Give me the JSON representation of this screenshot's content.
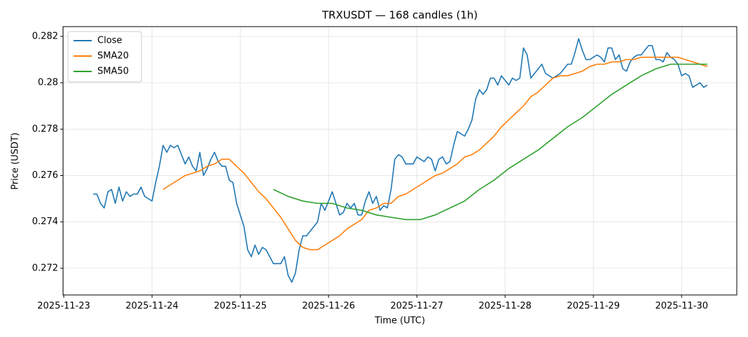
{
  "chart_data": {
    "type": "line",
    "title": "TRXUSDT — 168 candles (1h)",
    "xlabel": "Time (UTC)",
    "ylabel": "Price (USDT)",
    "xlim": [
      -8.2,
      175
    ],
    "ylim": [
      0.27085,
      0.28242
    ],
    "xticks": [
      {
        "value": -8,
        "label": "2025-11-23"
      },
      {
        "value": 16,
        "label": "2025-11-24"
      },
      {
        "value": 40,
        "label": "2025-11-25"
      },
      {
        "value": 64,
        "label": "2025-11-26"
      },
      {
        "value": 88,
        "label": "2025-11-27"
      },
      {
        "value": 112,
        "label": "2025-11-28"
      },
      {
        "value": 136,
        "label": "2025-11-29"
      },
      {
        "value": 160,
        "label": "2025-11-30"
      }
    ],
    "yticks": [
      0.272,
      0.274,
      0.276,
      0.278,
      0.28,
      0.282
    ],
    "grid": true,
    "legend": "upper-left",
    "series": [
      {
        "name": "Close",
        "color": "#1f77b4",
        "values": [
          0.2752,
          0.2752,
          0.2748,
          0.2746,
          0.2753,
          0.2754,
          0.2748,
          0.2755,
          0.2749,
          0.2753,
          0.2751,
          0.2752,
          0.2752,
          0.2755,
          0.2751,
          0.275,
          0.2749,
          0.2757,
          0.2764,
          0.2773,
          0.277,
          0.2773,
          0.2772,
          0.2773,
          0.2769,
          0.2765,
          0.2768,
          0.2764,
          0.2762,
          0.277,
          0.276,
          0.2763,
          0.2767,
          0.277,
          0.2766,
          0.2764,
          0.2764,
          0.2758,
          0.2757,
          0.2748,
          0.2743,
          0.2738,
          0.2728,
          0.2725,
          0.273,
          0.2726,
          0.2729,
          0.2728,
          0.2725,
          0.2722,
          0.2722,
          0.2722,
          0.2725,
          0.2717,
          0.2714,
          0.2718,
          0.2728,
          0.2734,
          0.2734,
          0.2736,
          0.2738,
          0.274,
          0.2748,
          0.2745,
          0.2749,
          0.2753,
          0.2748,
          0.2743,
          0.2744,
          0.2748,
          0.2746,
          0.2748,
          0.2743,
          0.2743,
          0.2749,
          0.2753,
          0.2748,
          0.2751,
          0.2745,
          0.2747,
          0.2746,
          0.2754,
          0.2767,
          0.2769,
          0.2768,
          0.2765,
          0.2765,
          0.2765,
          0.2768,
          0.2767,
          0.2766,
          0.2768,
          0.2767,
          0.2762,
          0.2767,
          0.2768,
          0.2765,
          0.2766,
          0.2773,
          0.2779,
          0.2778,
          0.2777,
          0.278,
          0.2784,
          0.2793,
          0.2797,
          0.2795,
          0.2797,
          0.2802,
          0.2802,
          0.2799,
          0.2803,
          0.2801,
          0.2799,
          0.2802,
          0.2801,
          0.2802,
          0.2815,
          0.2812,
          0.2802,
          0.2804,
          0.2806,
          0.2808,
          0.2804,
          0.2803,
          0.2802,
          0.2803,
          0.2804,
          0.2806,
          0.2808,
          0.2808,
          0.2813,
          0.2819,
          0.2814,
          0.281,
          0.281,
          0.2811,
          0.2812,
          0.2811,
          0.2809,
          0.2815,
          0.2815,
          0.281,
          0.2812,
          0.2806,
          0.2805,
          0.2809,
          0.2811,
          0.2812,
          0.2812,
          0.2814,
          0.2816,
          0.2816,
          0.281,
          0.281,
          0.2809,
          0.2813,
          0.2811,
          0.281,
          0.2808,
          0.2803,
          0.2804,
          0.2803,
          0.2798,
          0.2799,
          0.28,
          0.2798,
          0.2799
        ]
      },
      {
        "name": "SMA20",
        "color": "#ff7f0e",
        "x": [
          19,
          21,
          23,
          25,
          27,
          29,
          31,
          33,
          35,
          37,
          39,
          41,
          43,
          45,
          47,
          49,
          51,
          53,
          55,
          57,
          59,
          61,
          63,
          65,
          67,
          69,
          71,
          73,
          75,
          77,
          79,
          81,
          83,
          85,
          87,
          89,
          91,
          93,
          95,
          97,
          99,
          101,
          103,
          105,
          107,
          109,
          111,
          113,
          115,
          117,
          119,
          121,
          123,
          125,
          127,
          129,
          131,
          133,
          135,
          137,
          139,
          141,
          143,
          145,
          147,
          149,
          151,
          153,
          155,
          157,
          159,
          161,
          163,
          165,
          167
        ],
        "values": [
          0.2754,
          0.2756,
          0.2758,
          0.276,
          0.2761,
          0.2762,
          0.2764,
          0.2765,
          0.2767,
          0.2767,
          0.2764,
          0.2761,
          0.2757,
          0.2753,
          0.275,
          0.2746,
          0.2742,
          0.2737,
          0.2732,
          0.2729,
          0.2728,
          0.2728,
          0.273,
          0.2732,
          0.2734,
          0.2737,
          0.2739,
          0.2741,
          0.2745,
          0.2746,
          0.2748,
          0.2748,
          0.2751,
          0.2752,
          0.2754,
          0.2756,
          0.2758,
          0.276,
          0.2761,
          0.2763,
          0.2765,
          0.2768,
          0.2769,
          0.2771,
          0.2774,
          0.2777,
          0.2781,
          0.2784,
          0.2787,
          0.279,
          0.2794,
          0.2796,
          0.2799,
          0.2802,
          0.2803,
          0.2803,
          0.2804,
          0.2805,
          0.2807,
          0.2808,
          0.2808,
          0.2809,
          0.2809,
          0.281,
          0.281,
          0.2811,
          0.2811,
          0.2811,
          0.2811,
          0.2811,
          0.2811,
          0.281,
          0.2809,
          0.2808,
          0.2807
        ]
      },
      {
        "name": "SMA50",
        "color": "#2ca02c",
        "x": [
          49,
          53,
          57,
          61,
          65,
          69,
          73,
          77,
          81,
          85,
          89,
          93,
          97,
          101,
          105,
          109,
          113,
          117,
          121,
          125,
          129,
          133,
          137,
          141,
          145,
          149,
          153,
          157,
          161,
          165,
          167
        ],
        "values": [
          0.2754,
          0.2751,
          0.2749,
          0.2748,
          0.2748,
          0.2746,
          0.2745,
          0.2743,
          0.2742,
          0.2741,
          0.2741,
          0.2743,
          0.2746,
          0.2749,
          0.2754,
          0.2758,
          0.2763,
          0.2767,
          0.2771,
          0.2776,
          0.2781,
          0.2785,
          0.279,
          0.2795,
          0.2799,
          0.2803,
          0.2806,
          0.2808,
          0.2808,
          0.2808,
          0.2808
        ]
      }
    ]
  }
}
